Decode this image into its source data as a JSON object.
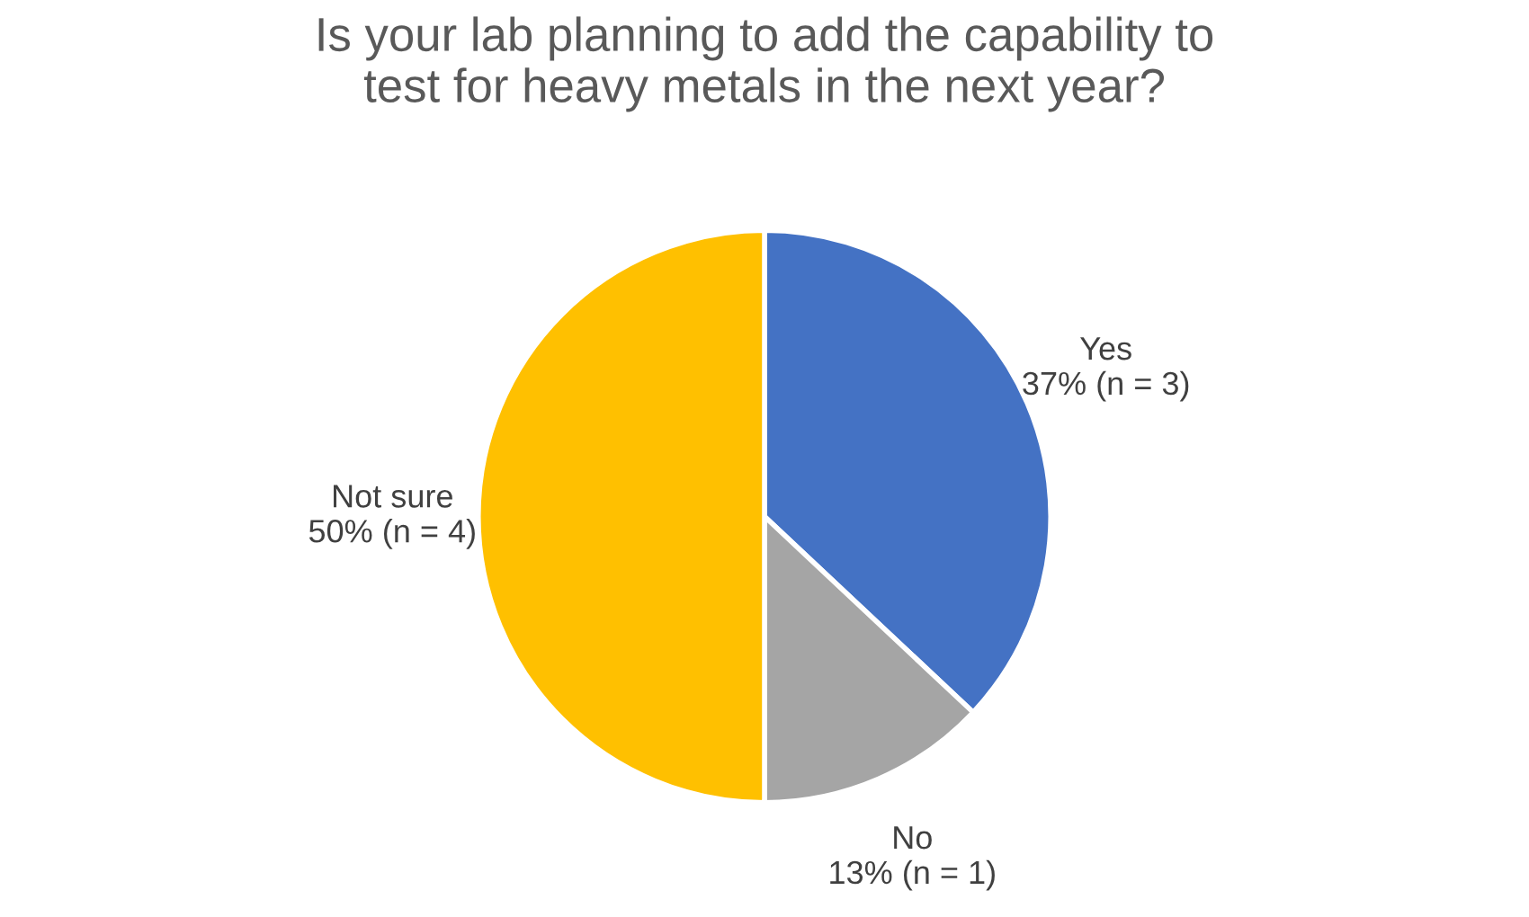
{
  "chart_data": {
    "type": "pie",
    "title": "Is your lab planning to add the capability to\ntest for heavy metals in the next year?",
    "categories": [
      "Yes",
      "No",
      "Not sure"
    ],
    "values": [
      37,
      13,
      50
    ],
    "colors": [
      "#4472c4",
      "#a5a5a5",
      "#ffc000"
    ],
    "value_labels": [
      "37% (n = 3)",
      "13% (n = 1)",
      "50% (n = 4)"
    ],
    "legend": false
  }
}
